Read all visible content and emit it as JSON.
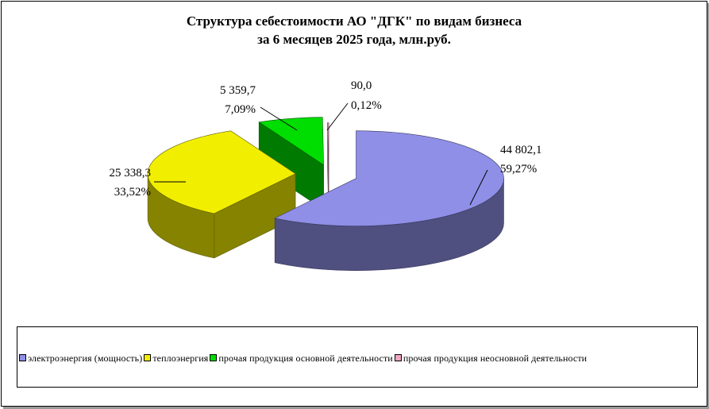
{
  "chart_data": {
    "type": "pie",
    "style": "3d-exploded",
    "title": "Структура себестоимости АО \"ДГК\" по видам  бизнеса",
    "subtitle": "за 6 месяцев 2025 года, млн.руб.",
    "categories": [
      "электроэнергия (мощность)",
      "теплоэнергия",
      "прочая продукция  основной  деятельности",
      "прочая продукция  неосновной  деятельности"
    ],
    "values": [
      44802.1,
      25338.3,
      5359.7,
      90.0
    ],
    "value_labels": [
      "44 802,1",
      "25 338,3",
      "5 359,7",
      "90,0"
    ],
    "percent_labels": [
      "59,27%",
      "33,52%",
      "7,09%",
      "0,12%"
    ],
    "colors": [
      "#8f8fe8",
      "#f2ee00",
      "#00dd00",
      "#f0a6c2"
    ],
    "legend_position": "bottom"
  }
}
